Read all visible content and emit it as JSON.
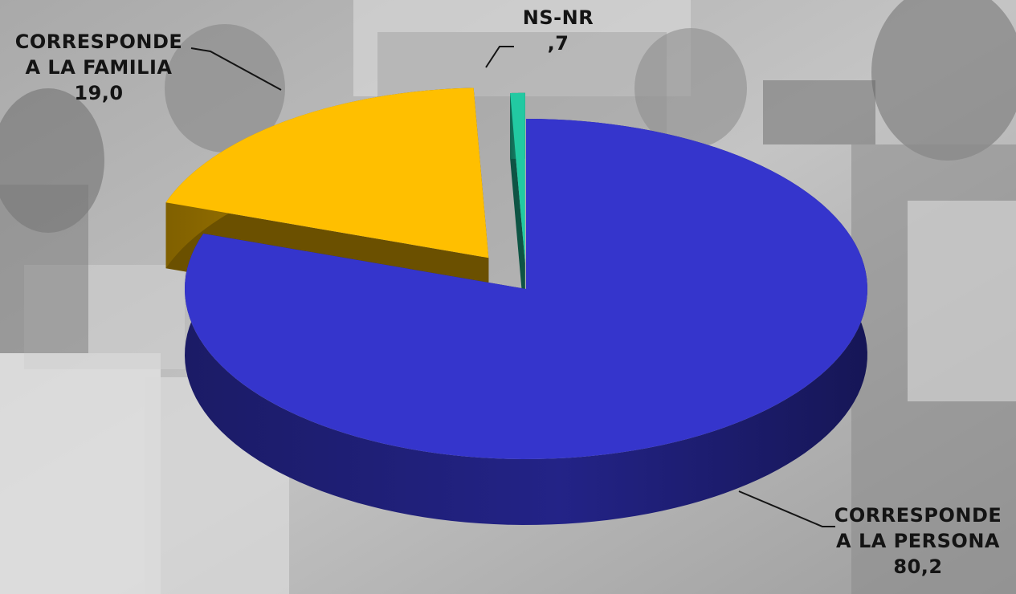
{
  "chart_data": {
    "type": "pie",
    "style": "3d-exploded",
    "title": "",
    "slices": [
      {
        "lines": [
          "CORRESPONDE",
          "A LA PERSONA"
        ],
        "value_label": "80,2",
        "value": 80.2,
        "color": "#3535cc"
      },
      {
        "lines": [
          "CORRESPONDE",
          "A LA FAMILIA"
        ],
        "value_label": "19,0",
        "value": 19.0,
        "color": "#ffbf00"
      },
      {
        "lines": [
          "NS-NR"
        ],
        "value_label": ",7",
        "value": 0.7,
        "color": "#22c9a2"
      }
    ]
  },
  "colors": {
    "background_photo": "grayscale",
    "label_text": "#141414",
    "leader_lines": "#141414"
  }
}
